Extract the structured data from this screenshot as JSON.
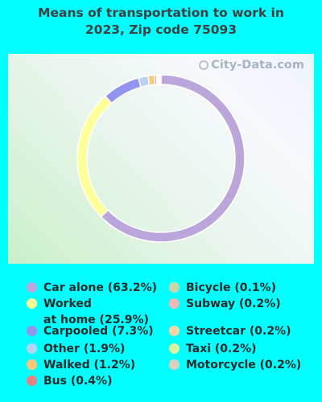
{
  "title_line1": "Means of transportation to work in",
  "title_line2": "2023, Zip code 75093",
  "watermark": "City-Data.com",
  "chart_data": {
    "type": "pie",
    "subtype": "donut",
    "title": "Means of transportation to work in 2023, Zip code 75093",
    "slices": [
      {
        "label": "Car alone (63.2%)",
        "value": 63.2,
        "color": "#bba6dc"
      },
      {
        "label": "Worked at home (25.9%)",
        "value": 25.9,
        "color": "#ffff99"
      },
      {
        "label": "Carpooled (7.3%)",
        "value": 7.3,
        "color": "#9393f0"
      },
      {
        "label": "Other (1.9%)",
        "value": 1.9,
        "color": "#b6d3f4"
      },
      {
        "label": "Walked (1.2%)",
        "value": 1.2,
        "color": "#f8c77a"
      },
      {
        "label": "Bus (0.4%)",
        "value": 0.4,
        "color": "#e48383"
      },
      {
        "label": "Bicycle (0.1%)",
        "value": 0.1,
        "color": "#c3d9a9"
      },
      {
        "label": "Subway (0.2%)",
        "value": 0.2,
        "color": "#f2b8b8"
      },
      {
        "label": "Streetcar (0.2%)",
        "value": 0.2,
        "color": "#f8d5a6"
      },
      {
        "label": "Taxi (0.2%)",
        "value": 0.2,
        "color": "#d6f59e"
      },
      {
        "label": "Motorcycle (0.2%)",
        "value": 0.2,
        "color": "#d9d2bc"
      }
    ],
    "legend_placement": "bottom"
  },
  "legend": {
    "left": [
      {
        "lines": [
          "Car alone (63.2%)"
        ],
        "color": "#bba6dc"
      },
      {
        "lines": [
          "Worked",
          "at home (25.9%)"
        ],
        "color": "#ffff99"
      },
      {
        "lines": [
          "Carpooled (7.3%)"
        ],
        "color": "#9393f0"
      },
      {
        "lines": [
          "Other (1.9%)"
        ],
        "color": "#b6d3f4"
      },
      {
        "lines": [
          "Walked (1.2%)"
        ],
        "color": "#f8c77a"
      },
      {
        "lines": [
          "Bus (0.4%)"
        ],
        "color": "#e48383"
      }
    ],
    "right": [
      {
        "lines": [
          "Bicycle (0.1%)"
        ],
        "color": "#c3d9a9"
      },
      {
        "lines": [
          "Subway (0.2%)"
        ],
        "color": "#f2b8b8"
      },
      {
        "lines": [
          "Streetcar (0.2%)"
        ],
        "color": "#f8d5a6"
      },
      {
        "lines": [
          "Taxi (0.2%)"
        ],
        "color": "#d6f59e"
      },
      {
        "lines": [
          "Motorcycle (0.2%)"
        ],
        "color": "#d9d2bc"
      }
    ]
  }
}
